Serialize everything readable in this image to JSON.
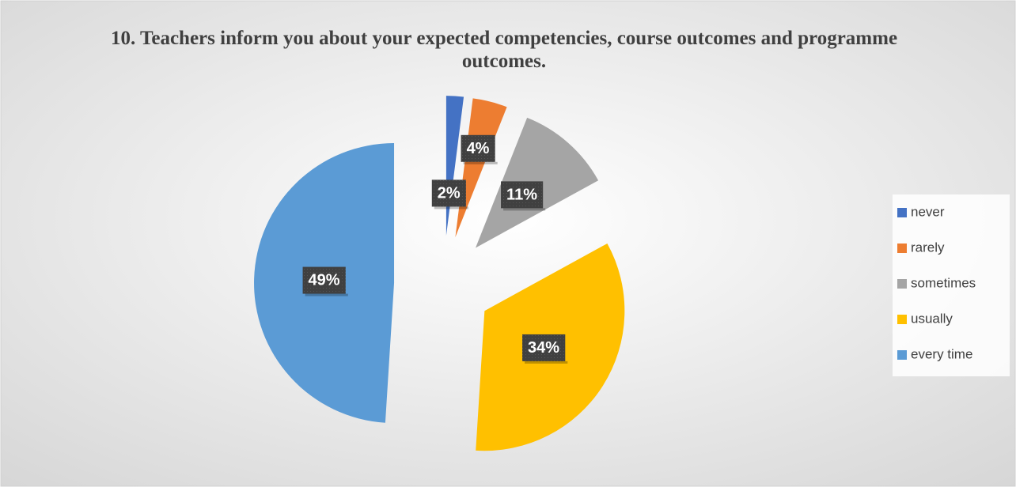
{
  "chart_data": {
    "type": "pie",
    "title": "10. Teachers inform you about your expected competencies, course outcomes and programme outcomes.",
    "categories": [
      "never",
      "rarely",
      "sometimes",
      "usually",
      "every time"
    ],
    "values": [
      2,
      4,
      11,
      34,
      49
    ],
    "value_labels": [
      "2%",
      "4%",
      "11%",
      "34%",
      "49%"
    ],
    "colors": [
      "#4472c4",
      "#ed7d31",
      "#a5a5a5",
      "#ffc000",
      "#5b9bd5"
    ],
    "legend": "right"
  }
}
